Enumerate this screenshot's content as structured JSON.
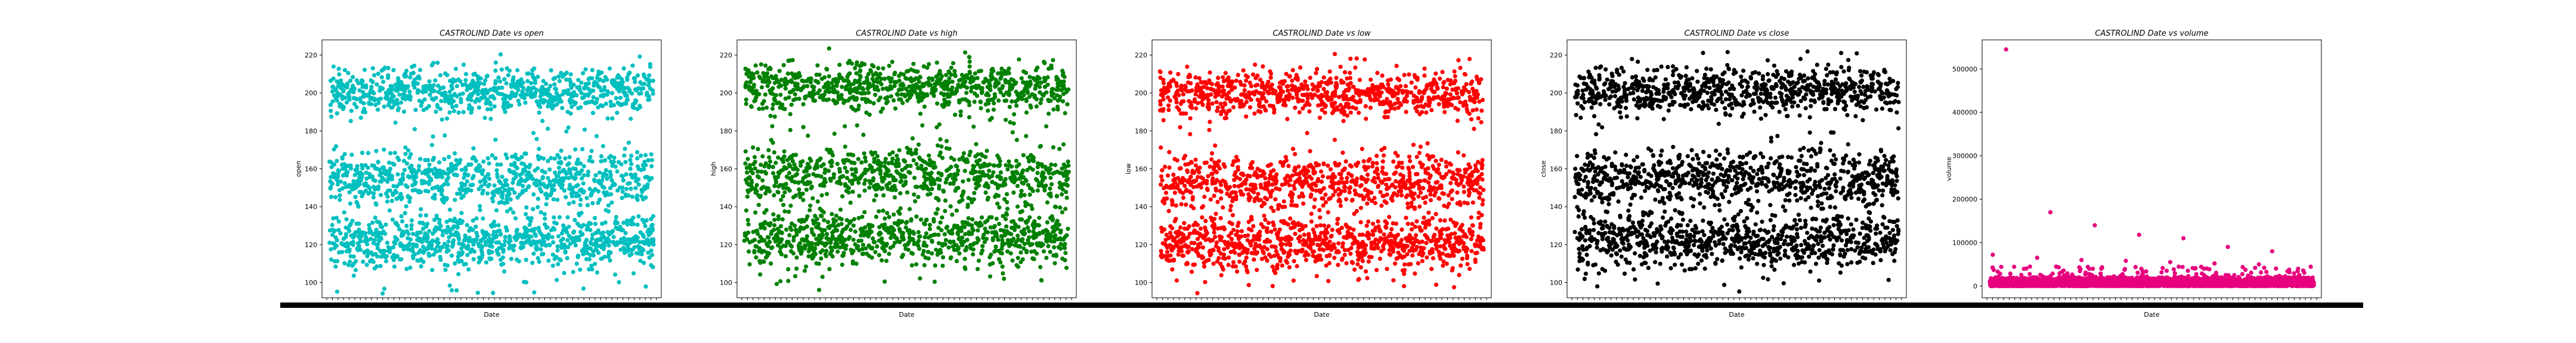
{
  "chart_data": [
    {
      "type": "scatter",
      "title": "CASTROLIND Date vs open",
      "xlabel": "Date",
      "ylabel": "open",
      "color": "#00bfbf",
      "ylim": [
        92,
        228
      ],
      "yticks": [
        100,
        120,
        140,
        160,
        180,
        200,
        220
      ],
      "n_points": 2400,
      "bands": [
        {
          "center": 122,
          "spread": 12,
          "weight": 0.36
        },
        {
          "center": 155,
          "spread": 12,
          "weight": 0.32
        },
        {
          "center": 201,
          "spread": 10,
          "weight": 0.32
        }
      ],
      "range": [
        94,
        222
      ]
    },
    {
      "type": "scatter",
      "title": "CASTROLIND Date vs high",
      "xlabel": "Date",
      "ylabel": "high",
      "color": "#008000",
      "ylim": [
        92,
        228
      ],
      "yticks": [
        100,
        120,
        140,
        160,
        180,
        200,
        220
      ],
      "n_points": 2400,
      "bands": [
        {
          "center": 124,
          "spread": 12,
          "weight": 0.36
        },
        {
          "center": 157,
          "spread": 12,
          "weight": 0.32
        },
        {
          "center": 203,
          "spread": 10,
          "weight": 0.32
        }
      ],
      "range": [
        96,
        224
      ]
    },
    {
      "type": "scatter",
      "title": "CASTROLIND Date vs low",
      "xlabel": "Date",
      "ylabel": "low",
      "color": "#ff0000",
      "ylim": [
        92,
        228
      ],
      "yticks": [
        100,
        120,
        140,
        160,
        180,
        200,
        220
      ],
      "n_points": 2400,
      "bands": [
        {
          "center": 120,
          "spread": 12,
          "weight": 0.36
        },
        {
          "center": 153,
          "spread": 12,
          "weight": 0.32
        },
        {
          "center": 199,
          "spread": 10,
          "weight": 0.32
        }
      ],
      "range": [
        94,
        221
      ]
    },
    {
      "type": "scatter",
      "title": "CASTROLIND Date vs close",
      "xlabel": "Date",
      "ylabel": "close",
      "color": "#000000",
      "ylim": [
        92,
        228
      ],
      "yticks": [
        100,
        120,
        140,
        160,
        180,
        200,
        220
      ],
      "n_points": 2400,
      "bands": [
        {
          "center": 122,
          "spread": 12,
          "weight": 0.36
        },
        {
          "center": 155,
          "spread": 12,
          "weight": 0.32
        },
        {
          "center": 201,
          "spread": 10,
          "weight": 0.32
        }
      ],
      "range": [
        94,
        222
      ]
    },
    {
      "type": "scatter",
      "title": "CASTROLIND Date vs volume",
      "xlabel": "Date",
      "ylabel": "volume",
      "color": "#e6007e",
      "ylim": [
        -27000,
        567000
      ],
      "yticks": [
        0,
        100000,
        200000,
        300000,
        400000,
        500000
      ],
      "n_points": 2400,
      "volume_typical_max": 45000,
      "volume_outliers": [
        545000,
        170000,
        140000,
        118000,
        110000,
        90000,
        80000,
        72000,
        65000,
        60000,
        58000,
        55000,
        52000,
        50000
      ]
    }
  ]
}
